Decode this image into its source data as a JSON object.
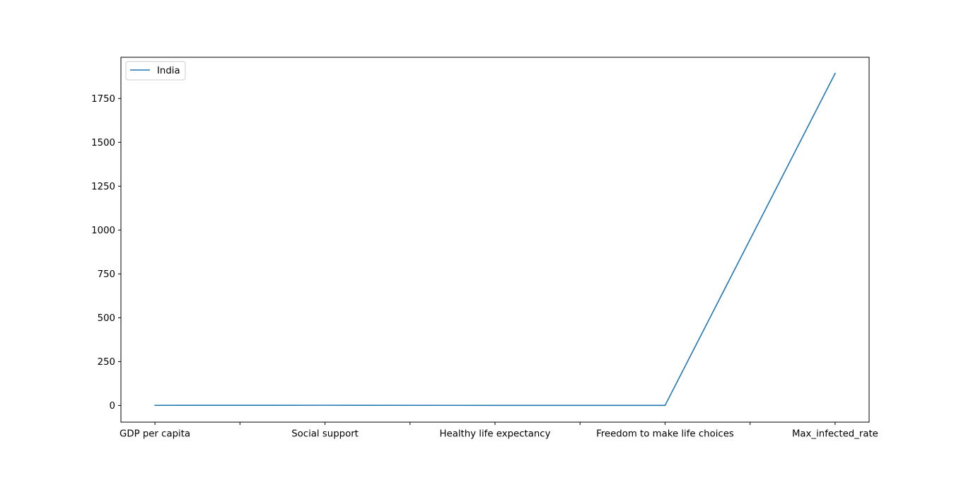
{
  "chart_data": {
    "type": "line",
    "categories": [
      "GDP per capita",
      "",
      "Social support",
      "",
      "Healthy life expectancy",
      "",
      "Freedom to make life choices",
      "",
      "Max_infected_rate"
    ],
    "x": [
      0,
      1,
      2,
      3,
      4
    ],
    "series": [
      {
        "name": "India",
        "values": [
          0.75,
          1.25,
          0.55,
          0.45,
          1893
        ]
      }
    ],
    "ylim": [
      -95,
      1985
    ],
    "xlim": [
      -0.2,
      4.2
    ],
    "yticks": [
      0,
      250,
      500,
      750,
      1000,
      1250,
      1500,
      1750
    ],
    "ytick_labels": [
      "0",
      "250",
      "500",
      "750",
      "1000",
      "1250",
      "1500",
      "1750"
    ],
    "xticks": [
      0,
      0.5,
      1,
      1.5,
      2,
      2.5,
      3,
      3.5,
      4
    ],
    "legend": "top-left",
    "grid": false,
    "colors": {
      "series": "#1f77b4",
      "axes": "#000000",
      "background": "#ffffff"
    }
  }
}
